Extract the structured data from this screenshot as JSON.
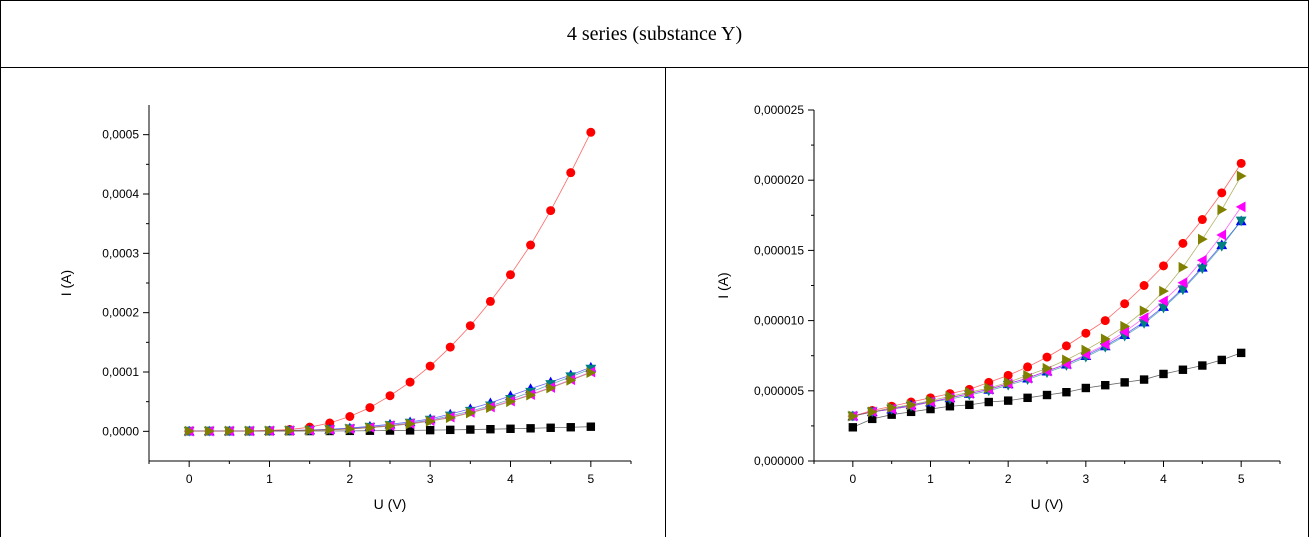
{
  "header": {
    "title": "4 series (substance Y)"
  },
  "chart_data": [
    {
      "type": "scatter",
      "title": "",
      "xlabel": "U (V)",
      "ylabel": "I (A)",
      "xlim": [
        -0.5,
        5.5
      ],
      "ylim": [
        -5e-05,
        0.00055
      ],
      "x_ticks": [
        "0",
        "1",
        "2",
        "3",
        "4",
        "5"
      ],
      "y_ticks": [
        "0,0000",
        "0,0001",
        "0,0002",
        "0,0003",
        "0,0004",
        "0,0005"
      ],
      "x": [
        0,
        0.25,
        0.5,
        0.75,
        1,
        1.25,
        1.5,
        1.75,
        2,
        2.25,
        2.5,
        2.75,
        3,
        3.25,
        3.5,
        3.75,
        4,
        4.25,
        4.5,
        4.75,
        5
      ],
      "series": [
        {
          "marker": "square",
          "color": "#000000",
          "values": [
            3e-07,
            3e-07,
            3e-07,
            3e-07,
            4e-07,
            4e-07,
            5e-07,
            6e-07,
            8e-07,
            1e-06,
            1.3e-06,
            1.6e-06,
            2e-06,
            2.5e-06,
            3e-06,
            3.6e-06,
            4.3e-06,
            5.1e-06,
            6e-06,
            6.9e-06,
            7.8e-06
          ]
        },
        {
          "marker": "circle",
          "color": "#ff0000",
          "values": [
            3e-07,
            4e-07,
            5e-07,
            8e-07,
            1.5e-06,
            3e-06,
            7e-06,
            1.4e-05,
            2.5e-05,
            4e-05,
            6e-05,
            8.3e-05,
            0.00011,
            0.000142,
            0.000178,
            0.000219,
            0.000264,
            0.000314,
            0.000372,
            0.000436,
            0.000504
          ]
        },
        {
          "marker": "triangle-up",
          "color": "#0000ff",
          "values": [
            3e-07,
            4e-07,
            5e-07,
            7e-07,
            1e-06,
            1.5e-06,
            2.2e-06,
            3.5e-06,
            5.5e-06,
            8.5e-06,
            1.2e-05,
            1.6e-05,
            2.1e-05,
            2.9e-05,
            3.8e-05,
            4.8e-05,
            6e-05,
            7.2e-05,
            8.3e-05,
            9.5e-05,
            0.000108
          ]
        },
        {
          "marker": "triangle-down",
          "color": "#008080",
          "values": [
            3e-07,
            4e-07,
            5e-07,
            6e-07,
            9e-07,
            1.3e-06,
            2e-06,
            3e-06,
            4.5e-06,
            7e-06,
            1e-05,
            1.4e-05,
            1.9e-05,
            2.6e-05,
            3.4e-05,
            4.3e-05,
            5.4e-05,
            6.6e-05,
            7.9e-05,
            9.2e-05,
            0.000105
          ]
        },
        {
          "marker": "triangle-left",
          "color": "#ff00ff",
          "values": [
            3e-07,
            4e-07,
            5e-07,
            6e-07,
            8e-07,
            1.2e-06,
            1.8e-06,
            2.8e-06,
            4.2e-06,
            6.5e-06,
            9.5e-06,
            1.3e-05,
            1.8e-05,
            2.4e-05,
            3.2e-05,
            4.1e-05,
            5.1e-05,
            6.2e-05,
            7.4e-05,
            8.7e-05,
            0.0001
          ]
        },
        {
          "marker": "triangle-right",
          "color": "#808000",
          "values": [
            3e-07,
            4e-07,
            5e-07,
            6e-07,
            8e-07,
            1.1e-06,
            1.7e-06,
            2.6e-06,
            4e-06,
            6e-06,
            9e-06,
            1.25e-05,
            1.7e-05,
            2.3e-05,
            3.1e-05,
            4e-05,
            5e-05,
            6.1e-05,
            7.3e-05,
            8.6e-05,
            9.9e-05
          ]
        }
      ]
    },
    {
      "type": "scatter",
      "title": "",
      "xlabel": "U (V)",
      "ylabel": "I (A)",
      "xlim": [
        -0.5,
        5.5
      ],
      "ylim": [
        0,
        2.5e-05
      ],
      "x_ticks": [
        "0",
        "1",
        "2",
        "3",
        "4",
        "5"
      ],
      "y_ticks": [
        "0,000000",
        "0,000005",
        "0,000010",
        "0,000015",
        "0,000020",
        "0,000025"
      ],
      "x": [
        0,
        0.25,
        0.5,
        0.75,
        1,
        1.25,
        1.5,
        1.75,
        2,
        2.25,
        2.5,
        2.75,
        3,
        3.25,
        3.5,
        3.75,
        4,
        4.25,
        4.5,
        4.75,
        5
      ],
      "series": [
        {
          "marker": "square",
          "color": "#000000",
          "values": [
            2.4e-06,
            3e-06,
            3.3e-06,
            3.5e-06,
            3.7e-06,
            3.9e-06,
            4e-06,
            4.2e-06,
            4.3e-06,
            4.5e-06,
            4.7e-06,
            4.9e-06,
            5.2e-06,
            5.4e-06,
            5.6e-06,
            5.8e-06,
            6.2e-06,
            6.5e-06,
            6.8e-06,
            7.2e-06,
            7.7e-06
          ]
        },
        {
          "marker": "circle",
          "color": "#ff0000",
          "values": [
            3.2e-06,
            3.6e-06,
            3.9e-06,
            4.2e-06,
            4.5e-06,
            4.8e-06,
            5.1e-06,
            5.6e-06,
            6.1e-06,
            6.7e-06,
            7.4e-06,
            8.2e-06,
            9.1e-06,
            1e-05,
            1.12e-05,
            1.25e-05,
            1.39e-05,
            1.55e-05,
            1.72e-05,
            1.91e-05,
            2.12e-05
          ]
        },
        {
          "marker": "triangle-up",
          "color": "#0000ff",
          "values": [
            3.2e-06,
            3.5e-06,
            3.7e-06,
            4e-06,
            4.2e-06,
            4.5e-06,
            4.8e-06,
            5.1e-06,
            5.5e-06,
            5.9e-06,
            6.4e-06,
            6.9e-06,
            7.5e-06,
            8.2e-06,
            9e-06,
            9.9e-06,
            1.1e-05,
            1.23e-05,
            1.38e-05,
            1.54e-05,
            1.71e-05
          ]
        },
        {
          "marker": "triangle-down",
          "color": "#008080",
          "values": [
            3.2e-06,
            3.5e-06,
            3.7e-06,
            3.9e-06,
            4.2e-06,
            4.4e-06,
            4.7e-06,
            5e-06,
            5.4e-06,
            5.8e-06,
            6.3e-06,
            6.8e-06,
            7.4e-06,
            8.1e-06,
            8.9e-06,
            9.8e-06,
            1.09e-05,
            1.22e-05,
            1.37e-05,
            1.53e-05,
            1.71e-05
          ]
        },
        {
          "marker": "triangle-left",
          "color": "#ff00ff",
          "values": [
            3.2e-06,
            3.5e-06,
            3.7e-06,
            3.9e-06,
            4.2e-06,
            4.5e-06,
            4.8e-06,
            5.1e-06,
            5.5e-06,
            5.9e-06,
            6.4e-06,
            6.9e-06,
            7.6e-06,
            8.3e-06,
            9.2e-06,
            1.02e-05,
            1.14e-05,
            1.27e-05,
            1.43e-05,
            1.61e-05,
            1.81e-05
          ]
        },
        {
          "marker": "triangle-right",
          "color": "#808000",
          "values": [
            3.2e-06,
            3.5e-06,
            3.8e-06,
            4e-06,
            4.3e-06,
            4.6e-06,
            4.9e-06,
            5.2e-06,
            5.6e-06,
            6.1e-06,
            6.6e-06,
            7.2e-06,
            7.9e-06,
            8.7e-06,
            9.6e-06,
            1.07e-05,
            1.21e-05,
            1.38e-05,
            1.58e-05,
            1.79e-05,
            2.03e-05
          ]
        }
      ]
    }
  ]
}
